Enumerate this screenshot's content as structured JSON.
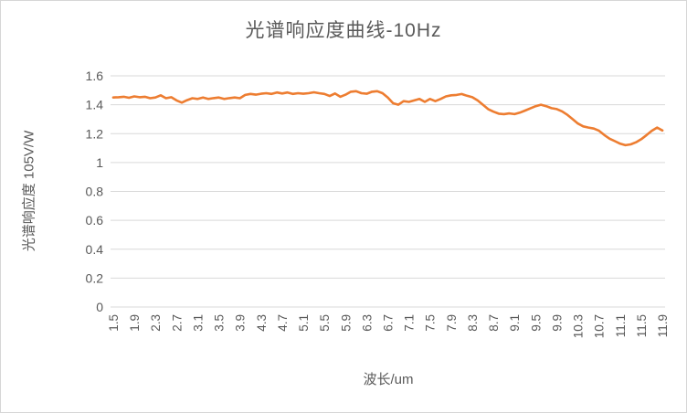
{
  "chart_data": {
    "type": "line",
    "title": "光谱响应度曲线-10Hz",
    "xlabel": "波长/um",
    "ylabel": "光谱响应度 105V/W",
    "x_start": 1.5,
    "x_step": 0.1,
    "x": [
      1.5,
      1.6,
      1.7,
      1.8,
      1.9,
      2.0,
      2.1,
      2.2,
      2.3,
      2.4,
      2.5,
      2.6,
      2.7,
      2.8,
      2.9,
      3.0,
      3.1,
      3.2,
      3.3,
      3.4,
      3.5,
      3.6,
      3.7,
      3.8,
      3.9,
      4.0,
      4.1,
      4.2,
      4.3,
      4.4,
      4.5,
      4.6,
      4.7,
      4.8,
      4.9,
      5.0,
      5.1,
      5.2,
      5.3,
      5.4,
      5.5,
      5.6,
      5.7,
      5.8,
      5.9,
      6.0,
      6.1,
      6.2,
      6.3,
      6.4,
      6.5,
      6.6,
      6.7,
      6.8,
      6.9,
      7.0,
      7.1,
      7.2,
      7.3,
      7.4,
      7.5,
      7.6,
      7.7,
      7.8,
      7.9,
      8.0,
      8.1,
      8.2,
      8.3,
      8.4,
      8.5,
      8.6,
      8.7,
      8.8,
      8.9,
      9.0,
      9.1,
      9.2,
      9.3,
      9.4,
      9.5,
      9.6,
      9.7,
      9.8,
      9.9,
      10.0,
      10.1,
      10.2,
      10.3,
      10.4,
      10.5,
      10.6,
      10.7,
      10.8,
      10.9,
      11.0,
      11.1,
      11.2,
      11.3,
      11.4,
      11.5,
      11.6,
      11.7,
      11.8,
      11.9
    ],
    "values": [
      1.45,
      1.452,
      1.455,
      1.448,
      1.458,
      1.452,
      1.455,
      1.445,
      1.45,
      1.465,
      1.445,
      1.452,
      1.43,
      1.415,
      1.432,
      1.445,
      1.44,
      1.45,
      1.44,
      1.446,
      1.45,
      1.44,
      1.446,
      1.45,
      1.445,
      1.468,
      1.475,
      1.47,
      1.476,
      1.48,
      1.475,
      1.485,
      1.478,
      1.485,
      1.475,
      1.48,
      1.476,
      1.48,
      1.486,
      1.48,
      1.475,
      1.46,
      1.478,
      1.455,
      1.47,
      1.49,
      1.494,
      1.48,
      1.476,
      1.49,
      1.494,
      1.48,
      1.45,
      1.41,
      1.4,
      1.425,
      1.42,
      1.43,
      1.44,
      1.42,
      1.44,
      1.425,
      1.44,
      1.458,
      1.465,
      1.468,
      1.474,
      1.462,
      1.452,
      1.43,
      1.4,
      1.37,
      1.352,
      1.338,
      1.335,
      1.34,
      1.335,
      1.345,
      1.36,
      1.375,
      1.39,
      1.4,
      1.39,
      1.376,
      1.37,
      1.354,
      1.33,
      1.3,
      1.27,
      1.25,
      1.242,
      1.235,
      1.22,
      1.19,
      1.165,
      1.148,
      1.13,
      1.12,
      1.126,
      1.14,
      1.162,
      1.19,
      1.22,
      1.242,
      1.222
    ],
    "x_tick_labels": [
      "1.5",
      "1.9",
      "2.3",
      "2.7",
      "3.1",
      "3.5",
      "3.9",
      "4.3",
      "4.7",
      "5.1",
      "5.5",
      "5.9",
      "6.3",
      "6.7",
      "7.1",
      "7.5",
      "7.9",
      "8.3",
      "8.7",
      "9.1",
      "9.5",
      "9.9",
      "10.3",
      "10.7",
      "11.1",
      "11.5",
      "11.9"
    ],
    "x_tick_every": 4,
    "y_tick_labels": [
      "0",
      "0.2",
      "0.4",
      "0.6",
      "0.8",
      "1",
      "1.2",
      "1.4",
      "1.6"
    ],
    "ylim": [
      0,
      1.6
    ],
    "y_tick_interval": 0.2,
    "grid": "horizontal",
    "legend": "none",
    "colors": {
      "line": "#ED7D31",
      "text": "#595959",
      "gridline": "#D9D9D9",
      "background": "#FFFFFF",
      "frame_border": "#D6D6D6"
    }
  }
}
